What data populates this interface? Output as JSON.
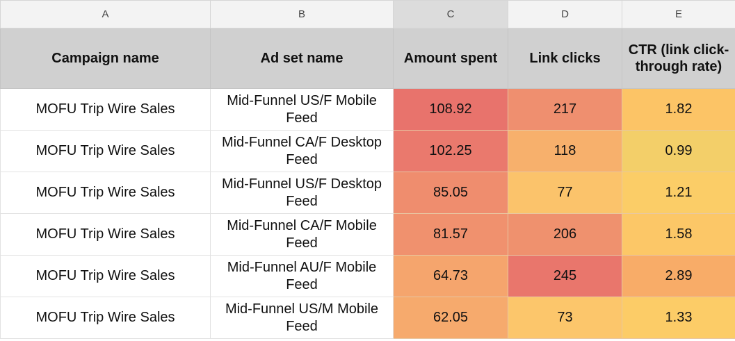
{
  "columns": [
    "A",
    "B",
    "C",
    "D",
    "E"
  ],
  "header": {
    "campaign_name": "Campaign name",
    "ad_set_name": "Ad set name",
    "amount_spent": "Amount spent",
    "link_clicks": "Link clicks",
    "ctr": "CTR (link click-through rate)"
  },
  "rows": [
    {
      "campaign": "MOFU Trip Wire Sales",
      "ad_set": "Mid-Funnel US/F Mobile Feed",
      "spent": "108.92",
      "clicks": "217",
      "ctr": "1.82",
      "colors": {
        "spent": "#e8736c",
        "clicks": "#ef8f6f",
        "ctr": "#fcc466"
      }
    },
    {
      "campaign": "MOFU Trip Wire Sales",
      "ad_set": "Mid-Funnel CA/F Desktop Feed",
      "spent": "102.25",
      "clicks": "118",
      "ctr": "0.99",
      "colors": {
        "spent": "#ea796d",
        "clicks": "#f7b06c",
        "ctr": "#f3cf69"
      }
    },
    {
      "campaign": "MOFU Trip Wire Sales",
      "ad_set": "Mid-Funnel US/F Desktop Feed",
      "spent": "85.05",
      "clicks": "77",
      "ctr": "1.21",
      "colors": {
        "spent": "#ef8d6e",
        "clicks": "#fbc36b",
        "ctr": "#fbcd67"
      }
    },
    {
      "campaign": "MOFU Trip Wire Sales",
      "ad_set": "Mid-Funnel CA/F Mobile Feed",
      "spent": "81.57",
      "clicks": "206",
      "ctr": "1.58",
      "colors": {
        "spent": "#f0916e",
        "clicks": "#ef916e",
        "ctr": "#fcc767"
      }
    },
    {
      "campaign": "MOFU Trip Wire Sales",
      "ad_set": "Mid-Funnel AU/F Mobile Feed",
      "spent": "64.73",
      "clicks": "245",
      "ctr": "2.89",
      "colors": {
        "spent": "#f5a56d",
        "clicks": "#e9766c",
        "ctr": "#f8ac68"
      }
    },
    {
      "campaign": "MOFU Trip Wire Sales",
      "ad_set": "Mid-Funnel US/M Mobile Feed",
      "spent": "62.05",
      "clicks": "73",
      "ctr": "1.33",
      "colors": {
        "spent": "#f6aa6d",
        "clicks": "#fcc66b",
        "ctr": "#fccc67"
      }
    }
  ]
}
